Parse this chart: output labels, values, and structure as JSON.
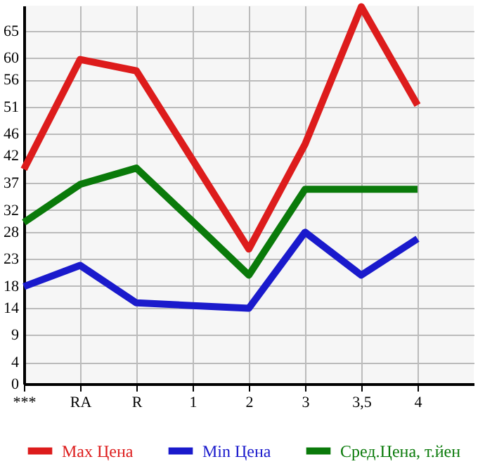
{
  "chart_data": {
    "type": "line",
    "categories": [
      "***",
      "RA",
      "R",
      "1",
      "2",
      "3",
      "3,5",
      "4"
    ],
    "series": [
      {
        "name": "Max Цена",
        "color": "#dd1c1c",
        "values": [
          39.5,
          59.7,
          57.6,
          41.2,
          24.8,
          44.1,
          69.4,
          51.3
        ]
      },
      {
        "name": "Min Цена",
        "color": "#1a1acc",
        "values": [
          17.9,
          21.8,
          14.9,
          14.4,
          13.9,
          27.9,
          20.0,
          26.7
        ]
      },
      {
        "name": "Сред.Цена, т.йен",
        "color": "#0a7a0a",
        "values": [
          29.7,
          36.7,
          39.7,
          29.9,
          20.0,
          35.8,
          35.8,
          35.8
        ]
      }
    ],
    "ylim": [
      0,
      69.6
    ],
    "yticks": [
      0,
      4,
      9,
      14,
      18,
      23,
      28,
      32,
      37,
      42,
      46,
      51,
      56,
      60,
      65
    ],
    "grid": true,
    "legend": "bottom",
    "marker": "none",
    "line_style": "solid"
  }
}
